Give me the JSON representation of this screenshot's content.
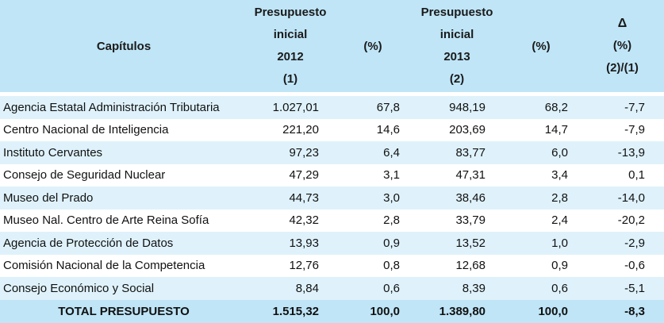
{
  "header": {
    "capitulos": "Capítulos",
    "col_2012": [
      "Presupuesto",
      "inicial",
      "2012",
      "(1)"
    ],
    "pct_1": "(%)",
    "col_2013": [
      "Presupuesto",
      "inicial",
      "2013",
      "(2)"
    ],
    "pct_2": "(%)",
    "delta": [
      "Δ",
      "(%)",
      "(2)/(1)"
    ]
  },
  "rows": [
    {
      "name": "Agencia Estatal Administración Tributaria",
      "v2012": "1.027,01",
      "p2012": "67,8",
      "v2013": "948,19",
      "p2013": "68,2",
      "delta": "-7,7"
    },
    {
      "name": "Centro Nacional de Inteligencia",
      "v2012": "221,20",
      "p2012": "14,6",
      "v2013": "203,69",
      "p2013": "14,7",
      "delta": "-7,9"
    },
    {
      "name": "Instituto Cervantes",
      "v2012": "97,23",
      "p2012": "6,4",
      "v2013": "83,77",
      "p2013": "6,0",
      "delta": "-13,9"
    },
    {
      "name": "Consejo de Seguridad Nuclear",
      "v2012": "47,29",
      "p2012": "3,1",
      "v2013": "47,31",
      "p2013": "3,4",
      "delta": "0,1"
    },
    {
      "name": "Museo del Prado",
      "v2012": "44,73",
      "p2012": "3,0",
      "v2013": "38,46",
      "p2013": "2,8",
      "delta": "-14,0"
    },
    {
      "name": "Museo Nal. Centro de Arte Reina Sofía",
      "v2012": "42,32",
      "p2012": "2,8",
      "v2013": "33,79",
      "p2013": "2,4",
      "delta": "-20,2"
    },
    {
      "name": "Agencia de Protección de Datos",
      "v2012": "13,93",
      "p2012": "0,9",
      "v2013": "13,52",
      "p2013": "1,0",
      "delta": "-2,9"
    },
    {
      "name": "Comisión Nacional de la Competencia",
      "v2012": "12,76",
      "p2012": "0,8",
      "v2013": "12,68",
      "p2013": "0,9",
      "delta": "-0,6"
    },
    {
      "name": "Consejo Económico y Social",
      "v2012": "8,84",
      "p2012": "0,6",
      "v2013": "8,39",
      "p2013": "0,6",
      "delta": "-5,1"
    }
  ],
  "total": {
    "label": "TOTAL PRESUPUESTO",
    "v2012": "1.515,32",
    "p2012": "100,0",
    "v2013": "1.389,80",
    "p2013": "100,0",
    "delta": "-8,3"
  },
  "colors": {
    "header_bg": "#bfe5f7",
    "stripe_bg": "#dff2fb"
  }
}
